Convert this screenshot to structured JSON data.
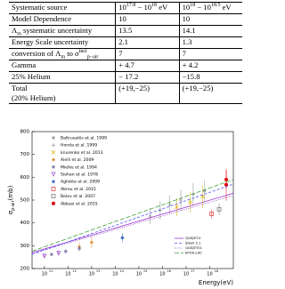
{
  "table": {
    "header": [
      "Systematic source",
      [
        {
          "t": "10"
        },
        {
          "sup": "17.8"
        },
        {
          "t": " − 10"
        },
        {
          "sup": "18"
        },
        {
          "t": " eV"
        }
      ],
      [
        {
          "t": "10"
        },
        {
          "sup": "18"
        },
        {
          "t": " − 10"
        },
        {
          "sup": "18.5"
        },
        {
          "t": " eV"
        }
      ]
    ],
    "rows": [
      [
        "Model Dependence",
        "10",
        "10"
      ],
      [
        [
          {
            "t": "Λ"
          },
          {
            "sub": "m"
          },
          {
            "t": " systematic uncertainty"
          }
        ],
        "13.5",
        "14.1"
      ],
      [
        "Energy Scale uncertainty",
        "2.1",
        "1.3"
      ],
      [
        [
          {
            "t": "conversion of Λ"
          },
          {
            "sub": "m"
          },
          {
            "t": " to σ"
          },
          {
            "sup": "incl"
          },
          {
            "sub": "p−air"
          }
        ],
        "7",
        "7"
      ],
      [
        "Gamma",
        "+ 4.7",
        "+ 4.2"
      ],
      [
        "25% Helium",
        "− 17.2",
        "−15.8"
      ],
      [
        [
          {
            "t": "Total"
          },
          {
            "line": "(20% Helium)"
          }
        ],
        "(+19,−25)",
        "(+19,−25)"
      ]
    ]
  },
  "chart_data": {
    "type": "scatter",
    "xlabel": "Energy(eV)",
    "ylabel": {
      "symbol": "σ",
      "sub": "p-air",
      "unit": "(mb)"
    },
    "xscale": "log",
    "xlim": [
      30000000000.0,
      1e+19
    ],
    "xticks": [
      {
        "value": 100000000000.0,
        "label": "10",
        "exp": "11"
      },
      {
        "value": 1000000000000.0,
        "label": "10",
        "exp": "12"
      },
      {
        "value": 10000000000000.0,
        "label": "10",
        "exp": "13"
      },
      {
        "value": 100000000000000.0,
        "label": "10",
        "exp": "14"
      },
      {
        "value": 1000000000000000.0,
        "label": "10",
        "exp": "15"
      },
      {
        "value": 1e+16,
        "label": "10",
        "exp": "16"
      },
      {
        "value": 1e+17,
        "label": "10",
        "exp": "17"
      },
      {
        "value": 1e+18,
        "label": "10",
        "exp": "18"
      }
    ],
    "ylim": [
      200,
      800
    ],
    "yticks": [
      200,
      300,
      400,
      500,
      600,
      700,
      800
    ],
    "series": [
      {
        "name": "Baltrusaitis et al. 1999",
        "style": "marker",
        "marker": "star",
        "color": "#999999",
        "x": [
          6e+17
        ],
        "values": [
          540
        ],
        "errors": [
          50
        ]
      },
      {
        "name": "Honda et al. 1999",
        "style": "marker",
        "marker": "plus",
        "color": "#888888",
        "x": [
          3000000000000000.0,
          8000000000000000.0,
          2e+16,
          6e+16,
          2e+17
        ],
        "values": [
          430,
          455,
          480,
          500,
          525
        ],
        "errors": [
          35,
          40,
          40,
          45,
          50
        ]
      },
      {
        "name": "knurenko et al. 2013",
        "style": "marker",
        "marker": "cross",
        "color": "#d4b000",
        "x": [
          4e+16,
          1.5e+17,
          5e+17
        ],
        "values": [
          470,
          490,
          515
        ],
        "errors": [
          40,
          45,
          50
        ]
      },
      {
        "name": "Aielli et al. 2009",
        "style": "marker",
        "marker": "diamond",
        "color": "#e08a2c",
        "x": [
          3000000000000.0,
          10000000000000.0
        ],
        "values": [
          295,
          315
        ],
        "errors": [
          20,
          25
        ]
      },
      {
        "name": "Mielke et al. 1994",
        "style": "marker",
        "marker": "star",
        "color": "#7a7aa8",
        "x": [
          200000000000.0,
          800000000000.0,
          3000000000000.0
        ],
        "values": [
          262,
          275,
          288
        ],
        "errors": [
          8,
          10,
          12
        ]
      },
      {
        "name": "Siohan et al. 1978",
        "style": "marker",
        "marker": "triangle",
        "color": "#9a4cc8",
        "x": [
          100000000000.0,
          400000000000.0
        ],
        "values": [
          255,
          268
        ],
        "errors": [
          10,
          12
        ]
      },
      {
        "name": "Aglietta et al. 2009",
        "style": "marker",
        "marker": "star",
        "color": "#3060c0",
        "x": [
          200000000000000.0
        ],
        "values": [
          335
        ],
        "errors": [
          20
        ]
      },
      {
        "name": "Abreu et al. 2015",
        "style": "marker",
        "marker": "square-open",
        "color": "#e03030",
        "x": [
          1.2e+18
        ],
        "values": [
          440
        ],
        "errors": [
          20
        ]
      },
      {
        "name": "Belov et al. 2007",
        "style": "marker",
        "marker": "square-open",
        "color": "#707070",
        "x": [
          2.5e+18
        ],
        "values": [
          460
        ],
        "errors": [
          25
        ]
      },
      {
        "name": "Abbasi et al. 2015",
        "style": "marker",
        "marker": "circle",
        "color": "#e00000",
        "x": [
          5e+18,
          5e+18
        ],
        "values": [
          567,
          590
        ],
        "errors": [
          70,
          40
        ]
      },
      {
        "name": "QGSJET-II",
        "style": "line",
        "dash": "",
        "color": "#9b30d0",
        "x": [
          30000000000.0,
          1e+19
        ],
        "values": [
          270,
          530
        ]
      },
      {
        "name": "Sibyll 2.1",
        "style": "line",
        "dash": "3,2",
        "color": "#5050ff",
        "x": [
          30000000000.0,
          1e+19
        ],
        "values": [
          262,
          570
        ]
      },
      {
        "name": "QGSJET01",
        "style": "line",
        "dash": "1,1.5",
        "color": "#8040c0",
        "x": [
          30000000000.0,
          1e+19
        ],
        "values": [
          266,
          520
        ]
      },
      {
        "name": "EPOS-LHC",
        "style": "line",
        "dash": "5,2",
        "color": "#40a040",
        "x": [
          30000000000.0,
          1e+19
        ],
        "values": [
          276,
          590
        ]
      }
    ]
  }
}
